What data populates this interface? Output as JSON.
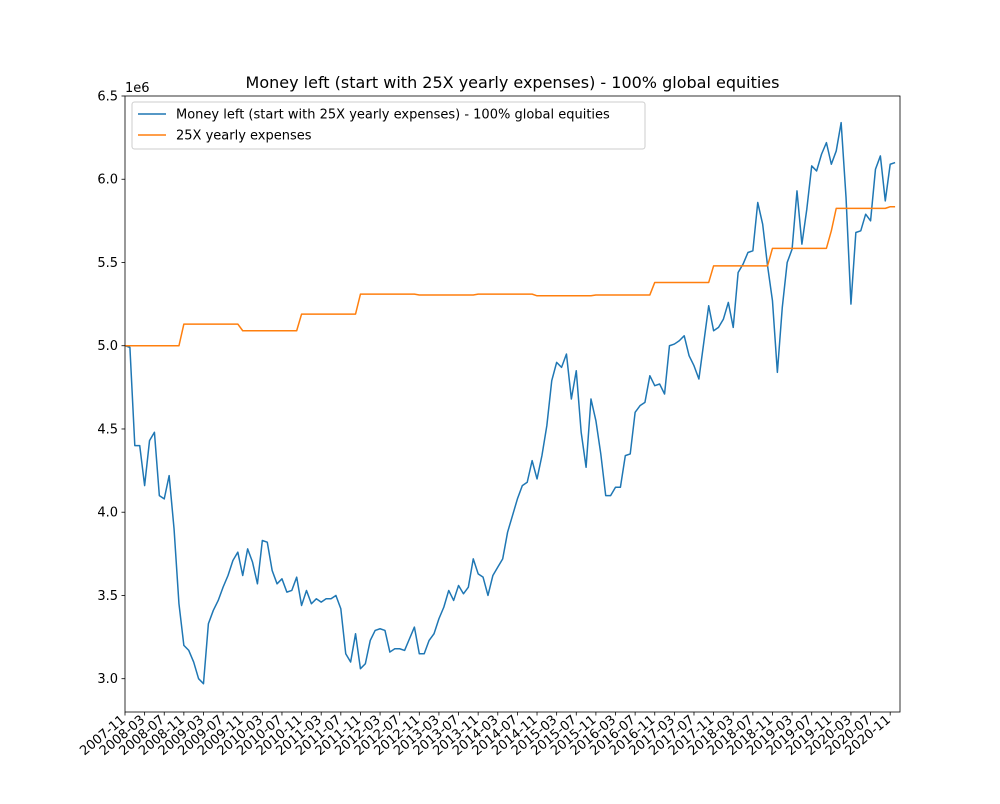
{
  "chart_data": {
    "type": "line",
    "title": "Money left (start with 25X yearly expenses) - 100% global equities",
    "xlabel": "",
    "ylabel": "",
    "y_scale_label": "1e6",
    "ylim": [
      2.8,
      6.5
    ],
    "yticks": [
      3.0,
      3.5,
      4.0,
      4.5,
      5.0,
      5.5,
      6.0,
      6.5
    ],
    "ytick_labels": [
      "3.0",
      "3.5",
      "4.0",
      "4.5",
      "5.0",
      "5.5",
      "6.0",
      "6.5"
    ],
    "x_start": "2007-11",
    "x_end": "2021-01",
    "xtick_labels": [
      "2007-11",
      "2008-03",
      "2008-07",
      "2008-11",
      "2009-03",
      "2009-07",
      "2009-11",
      "2010-03",
      "2010-07",
      "2010-11",
      "2011-03",
      "2011-07",
      "2011-11",
      "2012-03",
      "2012-07",
      "2012-11",
      "2013-03",
      "2013-07",
      "2013-11",
      "2014-03",
      "2014-07",
      "2014-11",
      "2015-03",
      "2015-07",
      "2015-11",
      "2016-03",
      "2016-07",
      "2016-11",
      "2017-03",
      "2017-07",
      "2017-11",
      "2018-03",
      "2018-07",
      "2018-11",
      "2019-03",
      "2019-07",
      "2019-11",
      "2020-03",
      "2020-07",
      "2020-11"
    ],
    "grid": false,
    "legend_position": "upper-left",
    "series": [
      {
        "name": "Money left (start with 25X yearly expenses) - 100% global equities",
        "color": "#1f77b4",
        "points": [
          [
            "2007-11",
            5.0
          ],
          [
            "2007-12",
            4.99
          ],
          [
            "2008-01",
            4.4
          ],
          [
            "2008-02",
            4.4
          ],
          [
            "2008-03",
            4.16
          ],
          [
            "2008-04",
            4.43
          ],
          [
            "2008-05",
            4.48
          ],
          [
            "2008-06",
            4.1
          ],
          [
            "2008-07",
            4.08
          ],
          [
            "2008-08",
            4.22
          ],
          [
            "2008-09",
            3.9
          ],
          [
            "2008-10",
            3.45
          ],
          [
            "2008-11",
            3.2
          ],
          [
            "2008-12",
            3.17
          ],
          [
            "2009-01",
            3.1
          ],
          [
            "2009-02",
            3.0
          ],
          [
            "2009-03",
            2.97
          ],
          [
            "2009-04",
            3.33
          ],
          [
            "2009-05",
            3.41
          ],
          [
            "2009-06",
            3.47
          ],
          [
            "2009-07",
            3.55
          ],
          [
            "2009-08",
            3.62
          ],
          [
            "2009-09",
            3.71
          ],
          [
            "2009-10",
            3.76
          ],
          [
            "2009-11",
            3.62
          ],
          [
            "2009-12",
            3.78
          ],
          [
            "2010-01",
            3.7
          ],
          [
            "2010-02",
            3.57
          ],
          [
            "2010-03",
            3.83
          ],
          [
            "2010-04",
            3.82
          ],
          [
            "2010-05",
            3.65
          ],
          [
            "2010-06",
            3.57
          ],
          [
            "2010-07",
            3.6
          ],
          [
            "2010-08",
            3.52
          ],
          [
            "2010-09",
            3.53
          ],
          [
            "2010-10",
            3.61
          ],
          [
            "2010-11",
            3.44
          ],
          [
            "2010-12",
            3.53
          ],
          [
            "2011-01",
            3.45
          ],
          [
            "2011-02",
            3.48
          ],
          [
            "2011-03",
            3.46
          ],
          [
            "2011-04",
            3.48
          ],
          [
            "2011-05",
            3.48
          ],
          [
            "2011-06",
            3.5
          ],
          [
            "2011-07",
            3.42
          ],
          [
            "2011-08",
            3.15
          ],
          [
            "2011-09",
            3.1
          ],
          [
            "2011-10",
            3.27
          ],
          [
            "2011-11",
            3.06
          ],
          [
            "2011-12",
            3.09
          ],
          [
            "2012-01",
            3.23
          ],
          [
            "2012-02",
            3.29
          ],
          [
            "2012-03",
            3.3
          ],
          [
            "2012-04",
            3.29
          ],
          [
            "2012-05",
            3.16
          ],
          [
            "2012-06",
            3.18
          ],
          [
            "2012-07",
            3.18
          ],
          [
            "2012-08",
            3.17
          ],
          [
            "2012-09",
            3.24
          ],
          [
            "2012-10",
            3.31
          ],
          [
            "2012-11",
            3.15
          ],
          [
            "2012-12",
            3.15
          ],
          [
            "2013-01",
            3.23
          ],
          [
            "2013-02",
            3.27
          ],
          [
            "2013-03",
            3.36
          ],
          [
            "2013-04",
            3.43
          ],
          [
            "2013-05",
            3.53
          ],
          [
            "2013-06",
            3.47
          ],
          [
            "2013-07",
            3.56
          ],
          [
            "2013-08",
            3.51
          ],
          [
            "2013-09",
            3.55
          ],
          [
            "2013-10",
            3.72
          ],
          [
            "2013-11",
            3.63
          ],
          [
            "2013-12",
            3.61
          ],
          [
            "2014-01",
            3.5
          ],
          [
            "2014-02",
            3.62
          ],
          [
            "2014-03",
            3.67
          ],
          [
            "2014-04",
            3.72
          ],
          [
            "2014-05",
            3.88
          ],
          [
            "2014-06",
            3.98
          ],
          [
            "2014-07",
            4.08
          ],
          [
            "2014-08",
            4.16
          ],
          [
            "2014-09",
            4.18
          ],
          [
            "2014-10",
            4.31
          ],
          [
            "2014-11",
            4.2
          ],
          [
            "2014-12",
            4.34
          ],
          [
            "2015-01",
            4.52
          ],
          [
            "2015-02",
            4.79
          ],
          [
            "2015-03",
            4.9
          ],
          [
            "2015-04",
            4.87
          ],
          [
            "2015-05",
            4.95
          ],
          [
            "2015-06",
            4.68
          ],
          [
            "2015-07",
            4.85
          ],
          [
            "2015-08",
            4.48
          ],
          [
            "2015-09",
            4.27
          ],
          [
            "2015-10",
            4.68
          ],
          [
            "2015-11",
            4.55
          ],
          [
            "2015-12",
            4.35
          ],
          [
            "2016-01",
            4.1
          ],
          [
            "2016-02",
            4.1
          ],
          [
            "2016-03",
            4.15
          ],
          [
            "2016-04",
            4.15
          ],
          [
            "2016-05",
            4.34
          ],
          [
            "2016-06",
            4.35
          ],
          [
            "2016-07",
            4.6
          ],
          [
            "2016-08",
            4.64
          ],
          [
            "2016-09",
            4.66
          ],
          [
            "2016-10",
            4.82
          ],
          [
            "2016-11",
            4.76
          ],
          [
            "2016-12",
            4.77
          ],
          [
            "2017-01",
            4.71
          ],
          [
            "2017-02",
            5.0
          ],
          [
            "2017-03",
            5.01
          ],
          [
            "2017-04",
            5.03
          ],
          [
            "2017-05",
            5.06
          ],
          [
            "2017-06",
            4.94
          ],
          [
            "2017-07",
            4.88
          ],
          [
            "2017-08",
            4.8
          ],
          [
            "2017-09",
            5.02
          ],
          [
            "2017-10",
            5.24
          ],
          [
            "2017-11",
            5.09
          ],
          [
            "2017-12",
            5.11
          ],
          [
            "2018-01",
            5.16
          ],
          [
            "2018-02",
            5.26
          ],
          [
            "2018-03",
            5.11
          ],
          [
            "2018-04",
            5.44
          ],
          [
            "2018-05",
            5.49
          ],
          [
            "2018-06",
            5.56
          ],
          [
            "2018-07",
            5.57
          ],
          [
            "2018-08",
            5.86
          ],
          [
            "2018-09",
            5.73
          ],
          [
            "2018-10",
            5.48
          ],
          [
            "2018-11",
            5.27
          ],
          [
            "2018-12",
            4.84
          ],
          [
            "2019-01",
            5.23
          ],
          [
            "2019-02",
            5.5
          ],
          [
            "2019-03",
            5.58
          ],
          [
            "2019-04",
            5.93
          ],
          [
            "2019-05",
            5.61
          ],
          [
            "2019-06",
            5.82
          ],
          [
            "2019-07",
            6.08
          ],
          [
            "2019-08",
            6.05
          ],
          [
            "2019-09",
            6.15
          ],
          [
            "2019-10",
            6.22
          ],
          [
            "2019-11",
            6.09
          ],
          [
            "2019-12",
            6.17
          ],
          [
            "2020-01",
            6.34
          ],
          [
            "2020-02",
            5.89
          ],
          [
            "2020-03",
            5.25
          ],
          [
            "2020-04",
            5.68
          ],
          [
            "2020-05",
            5.69
          ],
          [
            "2020-06",
            5.79
          ],
          [
            "2020-07",
            5.75
          ],
          [
            "2020-08",
            6.06
          ],
          [
            "2020-09",
            6.14
          ],
          [
            "2020-10",
            5.87
          ],
          [
            "2020-11",
            6.09
          ],
          [
            "2020-12",
            6.1
          ]
        ]
      },
      {
        "name": "25X yearly expenses",
        "color": "#ff7f0e",
        "points": [
          [
            "2007-11",
            5.0
          ],
          [
            "2008-10",
            5.0
          ],
          [
            "2008-11",
            5.13
          ],
          [
            "2009-10",
            5.13
          ],
          [
            "2009-11",
            5.09
          ],
          [
            "2010-10",
            5.09
          ],
          [
            "2010-11",
            5.19
          ],
          [
            "2011-10",
            5.19
          ],
          [
            "2011-11",
            5.31
          ],
          [
            "2012-10",
            5.31
          ],
          [
            "2012-11",
            5.305
          ],
          [
            "2013-10",
            5.305
          ],
          [
            "2013-11",
            5.31
          ],
          [
            "2014-10",
            5.31
          ],
          [
            "2014-11",
            5.3
          ],
          [
            "2015-10",
            5.3
          ],
          [
            "2015-11",
            5.305
          ],
          [
            "2016-10",
            5.305
          ],
          [
            "2016-11",
            5.38
          ],
          [
            "2017-10",
            5.38
          ],
          [
            "2017-11",
            5.48
          ],
          [
            "2018-10",
            5.48
          ],
          [
            "2018-11",
            5.585
          ],
          [
            "2019-10",
            5.585
          ],
          [
            "2019-11",
            5.69
          ],
          [
            "2019-12",
            5.825
          ],
          [
            "2020-10",
            5.825
          ],
          [
            "2020-11",
            5.835
          ],
          [
            "2020-12",
            5.835
          ]
        ]
      }
    ]
  }
}
